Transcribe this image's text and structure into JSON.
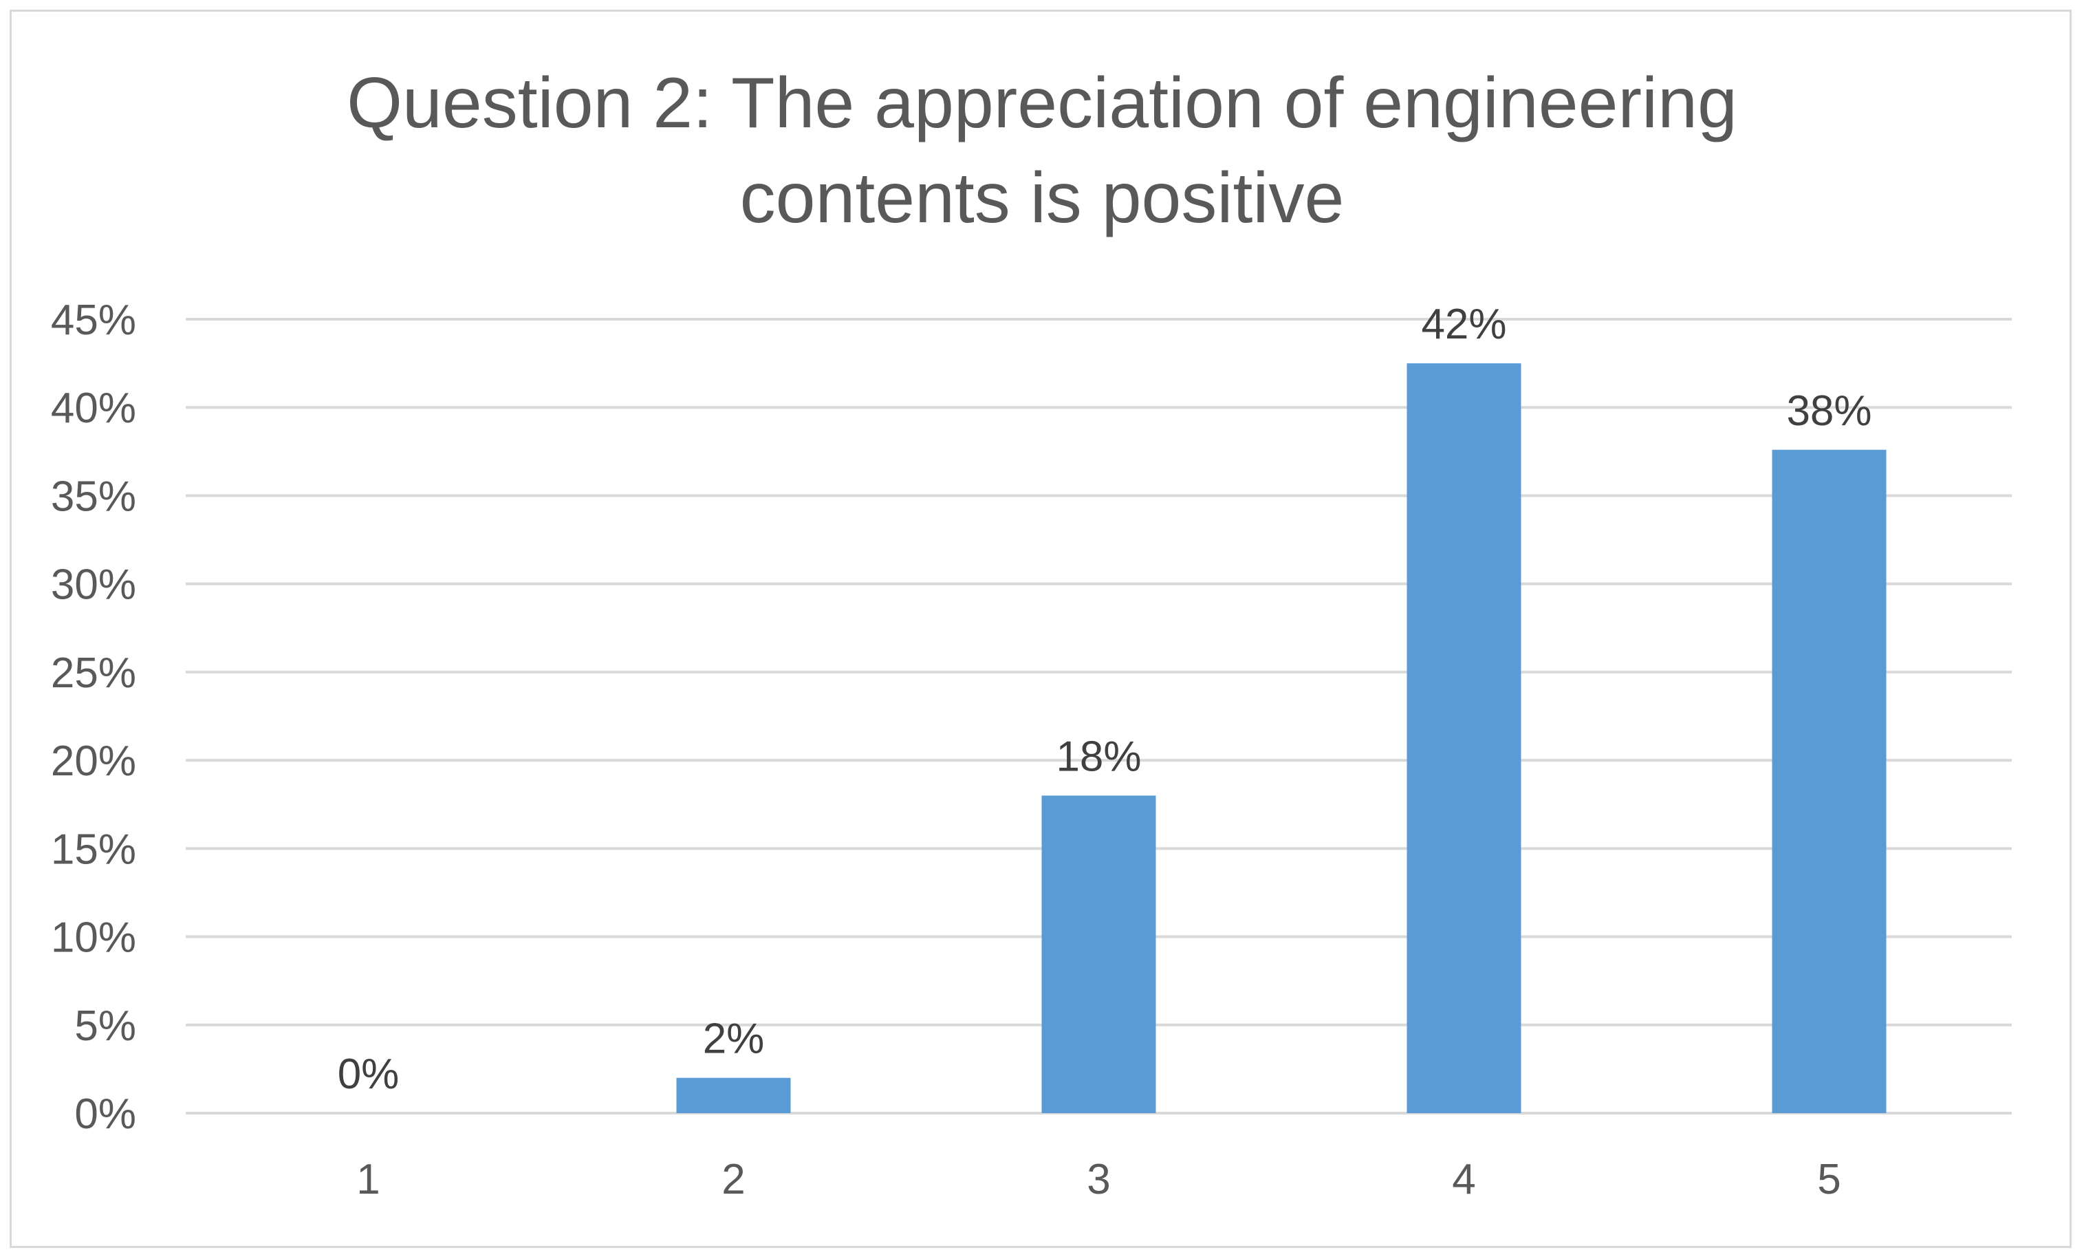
{
  "chart_data": {
    "type": "bar",
    "title_lines": [
      "Question 2: The appreciation of engineering",
      "contents is positive"
    ],
    "categories": [
      "1",
      "2",
      "3",
      "4",
      "5"
    ],
    "values": [
      0,
      2,
      18,
      42.5,
      37.6
    ],
    "data_labels": [
      "0%",
      "2%",
      "18%",
      "42%",
      "38%"
    ],
    "y_ticks": [
      0,
      5,
      10,
      15,
      20,
      25,
      30,
      35,
      40,
      45
    ],
    "y_tick_labels": [
      "0%",
      "5%",
      "10%",
      "15%",
      "20%",
      "25%",
      "30%",
      "35%",
      "40%",
      "45%"
    ],
    "ylim": [
      0,
      45
    ],
    "xlabel": "",
    "ylabel": "",
    "grid": true,
    "legend": "none",
    "bar_color": "#5b9bd5",
    "grid_color": "#d9d9d9"
  }
}
